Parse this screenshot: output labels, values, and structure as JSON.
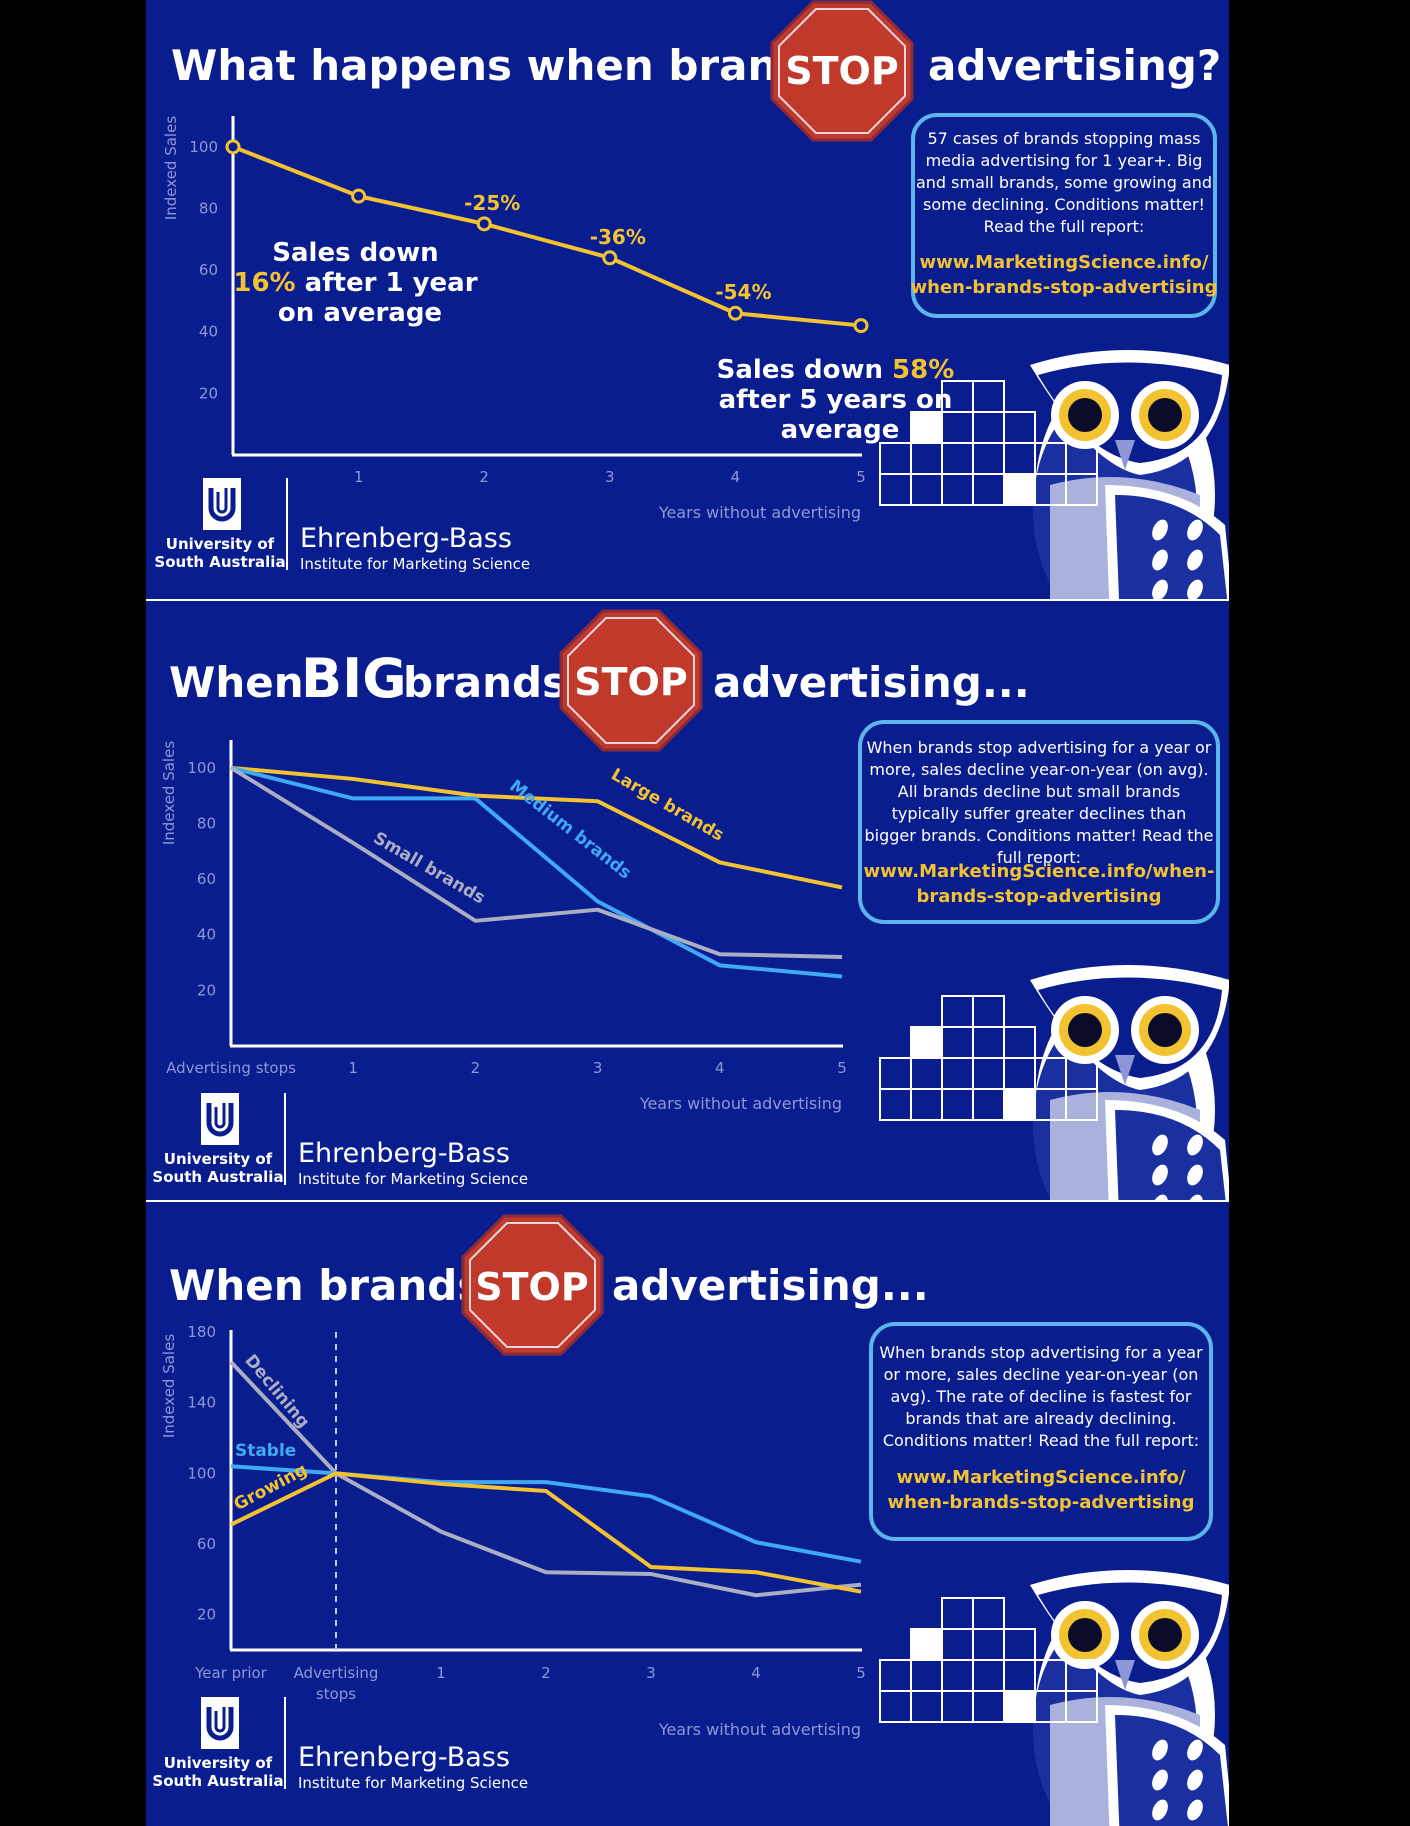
{
  "colors": {
    "background": "#0a1d8f",
    "outer": "#000000",
    "gold": "#f2c230",
    "blue_line": "#3fa9f5",
    "gray_line": "#a9aec2",
    "stop_red": "#c0392b",
    "box_border": "#5bb4ea",
    "axis_label": "#8e97d6",
    "white": "#ffffff"
  },
  "panels": [
    {
      "title_before": "What happens when brands",
      "stop_text": "STOP",
      "title_after": "advertising?",
      "info_text": "57 cases of brands stopping mass media advertising for 1 year+. Big and small brands, some growing and some declining. Conditions matter! Read the full report:",
      "info_link": "www.MarketingScience.info/ when-brands-stop-advertising",
      "logo_univ": "University of South Australia",
      "logo_inst_name": "Ehrenberg-Bass",
      "logo_inst_sub": "Institute for Marketing Science"
    },
    {
      "title_before": "When",
      "title_big": "BIG",
      "title_mid": "brands",
      "stop_text": "STOP",
      "title_after": "advertising...",
      "info_text": "When brands stop advertising for a year or more, sales decline year-on-year (on avg). All brands decline but small brands typically suffer greater declines than bigger brands. Conditions matter! Read the full report:",
      "info_link": "www.MarketingScience.info/when- brands-stop-advertising",
      "logo_univ": "University of South Australia",
      "logo_inst_name": "Ehrenberg-Bass",
      "logo_inst_sub": "Institute for Marketing Science"
    },
    {
      "title_before": "When brands",
      "stop_text": "STOP",
      "title_after": "advertising...",
      "info_text": "When brands stop advertising for a year or more, sales decline year-on-year (on avg). The rate of decline is fastest for brands that are already declining. Conditions matter! Read the full report:",
      "info_link": "www.MarketingScience.info/ when-brands-stop-advertising",
      "logo_univ": "University of South Australia",
      "logo_inst_name": "Ehrenberg-Bass",
      "logo_inst_sub": "Institute for Marketing Science"
    }
  ],
  "chart_data": [
    {
      "type": "line",
      "ylabel": "Indexed Sales",
      "xlabel": "Years without advertising",
      "ylim": [
        0,
        110
      ],
      "xlim": [
        0,
        5
      ],
      "y_ticks": [
        100,
        80,
        60,
        40,
        20
      ],
      "x_ticks": [
        "1",
        "2",
        "3",
        "4",
        "5"
      ],
      "grid": false,
      "series": [
        {
          "name": "",
          "x": [
            0,
            1,
            2,
            3,
            4,
            5
          ],
          "values": [
            100,
            84,
            75,
            64,
            46,
            42
          ],
          "color": "gold",
          "markers": true
        }
      ],
      "point_labels": [
        {
          "text": "-25%",
          "x": 2,
          "y": 75
        },
        {
          "text": "-36%",
          "x": 3,
          "y": 64
        },
        {
          "text": "-54%",
          "x": 4,
          "y": 46
        }
      ],
      "annotations": [
        {
          "line1": "Sales down",
          "line2_hl": "16%",
          "line2": " after 1 year",
          "line3": "on average"
        },
        {
          "line1": "Sales down ",
          "line1_hl": "58%",
          "line2": "after 5 years on",
          "line3": "average"
        }
      ]
    },
    {
      "type": "line",
      "ylabel": "Indexed Sales",
      "xlabel": "Years without advertising",
      "ylim": [
        0,
        110
      ],
      "xlim": [
        0,
        5
      ],
      "y_ticks": [
        100,
        80,
        60,
        40,
        20
      ],
      "x_ticks": [
        "Advertising stops",
        "1",
        "2",
        "3",
        "4",
        "5"
      ],
      "grid": false,
      "series": [
        {
          "name": "Large brands",
          "x": [
            0,
            1,
            2,
            3,
            4,
            5
          ],
          "values": [
            100,
            96,
            90,
            88,
            66,
            57
          ],
          "color": "gold"
        },
        {
          "name": "Medium brands",
          "x": [
            0,
            1,
            2,
            3,
            4,
            5
          ],
          "values": [
            100,
            89,
            89,
            52,
            29,
            25
          ],
          "color": "blue_line"
        },
        {
          "name": "Small brands",
          "x": [
            0,
            1,
            2,
            3,
            4,
            5
          ],
          "values": [
            100,
            73,
            45,
            49,
            33,
            32
          ],
          "color": "gray_line"
        }
      ]
    },
    {
      "type": "line",
      "ylabel": "Indexed Sales",
      "xlabel": "Years without advertising",
      "ylim": [
        0,
        180
      ],
      "xlim": [
        -1,
        5
      ],
      "y_ticks": [
        180,
        140,
        100,
        60,
        20
      ],
      "x_ticks": [
        "Year prior",
        "Advertising stops",
        "1",
        "2",
        "3",
        "4",
        "5"
      ],
      "vline_x": 0,
      "grid": false,
      "series": [
        {
          "name": "Declining",
          "x": [
            -1,
            0,
            1,
            2,
            3,
            4,
            5
          ],
          "values": [
            163,
            100,
            67,
            44,
            43,
            31,
            37
          ],
          "color": "gray_line"
        },
        {
          "name": "Stable",
          "x": [
            -1,
            0,
            1,
            2,
            3,
            4,
            5
          ],
          "values": [
            104,
            100,
            95,
            95,
            87,
            61,
            50
          ],
          "color": "blue_line"
        },
        {
          "name": "Growing",
          "x": [
            -1,
            0,
            1,
            2,
            3,
            4,
            5
          ],
          "values": [
            71,
            100,
            94,
            90,
            47,
            44,
            33
          ],
          "color": "gold"
        }
      ]
    }
  ]
}
